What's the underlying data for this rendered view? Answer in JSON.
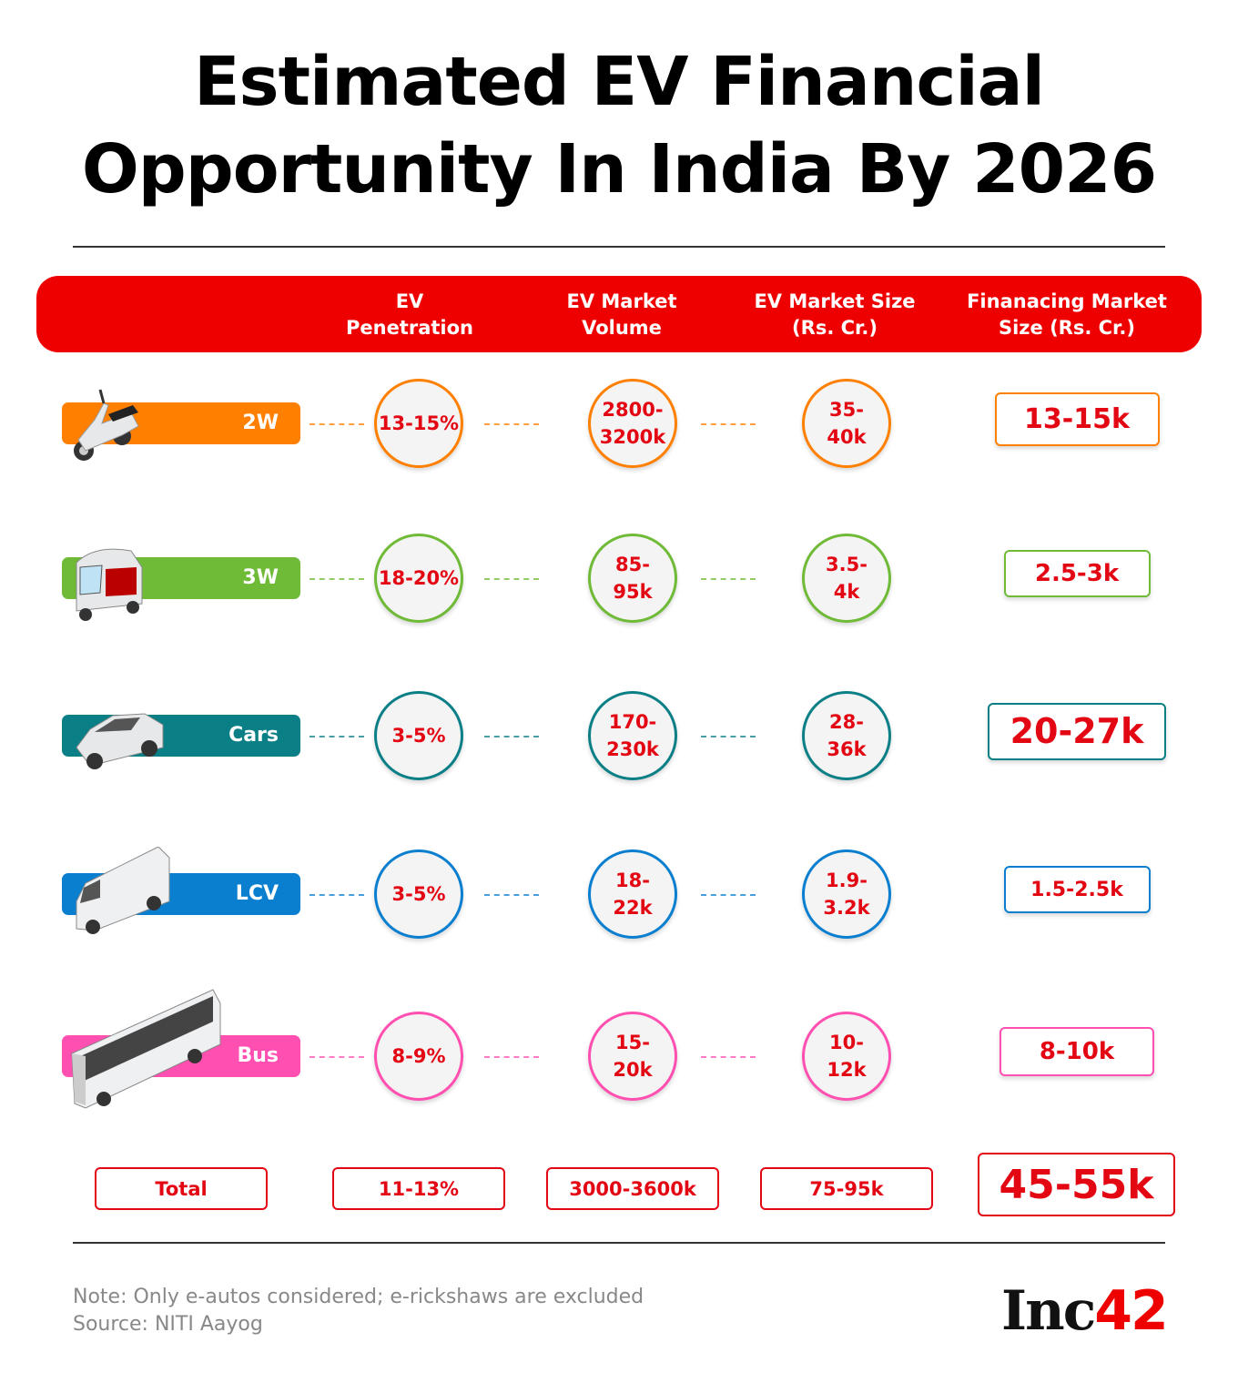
{
  "title": [
    "Estimated EV Financial",
    "Opportunity In India By 2026"
  ],
  "chart_data": {
    "type": "table",
    "columns": [
      "EV Penetration",
      "EV Market Volume",
      "EV Market Size (Rs. Cr.)",
      "Finanacing Market Size (Rs. Cr.)"
    ],
    "rows": [
      {
        "category": "2W",
        "color": "#ff8000",
        "icon": "scooter-icon",
        "values": [
          "13-15%",
          "2800-3200k",
          "35-40k",
          "13-15k"
        ]
      },
      {
        "category": "3W",
        "color": "#6fba36",
        "icon": "auto-rickshaw-icon",
        "values": [
          "18-20%",
          "85-95k",
          "3.5-4k",
          "2.5-3k"
        ]
      },
      {
        "category": "Cars",
        "color": "#0b7f86",
        "icon": "car-icon",
        "values": [
          "3-5%",
          "170-230k",
          "28-36k",
          "20-27k"
        ]
      },
      {
        "category": "LCV",
        "color": "#0a7fd0",
        "icon": "van-icon",
        "values": [
          "3-5%",
          "18-22k",
          "1.9-3.2k",
          "1.5-2.5k"
        ]
      },
      {
        "category": "Bus",
        "color": "#ff4fb0",
        "icon": "bus-icon",
        "values": [
          "8-9%",
          "15-20k",
          "10-12k",
          "8-10k"
        ]
      }
    ],
    "total": {
      "label": "Total",
      "values": [
        "11-13%",
        "3000-3600k",
        "75-95k",
        "45-55k"
      ]
    }
  },
  "header": [
    "EV\nPenetration",
    "EV Market\nVolume",
    "EV Market Size\n(Rs. Cr.)",
    "Finanacing Market\nSize (Rs. Cr.)"
  ],
  "circles": [
    [
      "13-15%",
      "2800-\n3200k",
      "35-\n40k"
    ],
    [
      "18-20%",
      "85-\n95k",
      "3.5-\n4k"
    ],
    [
      "3-5%",
      "170-\n230k",
      "28-\n36k"
    ],
    [
      "3-5%",
      "18-\n22k",
      "1.9-\n3.2k"
    ],
    [
      "8-9%",
      "15-\n20k",
      "10-\n12k"
    ]
  ],
  "note": "Note: Only e-autos considered; e-rickshaws are excluded",
  "source": "Source: NITI Aayog",
  "logo": "Inc42",
  "accent": "#ee0000"
}
